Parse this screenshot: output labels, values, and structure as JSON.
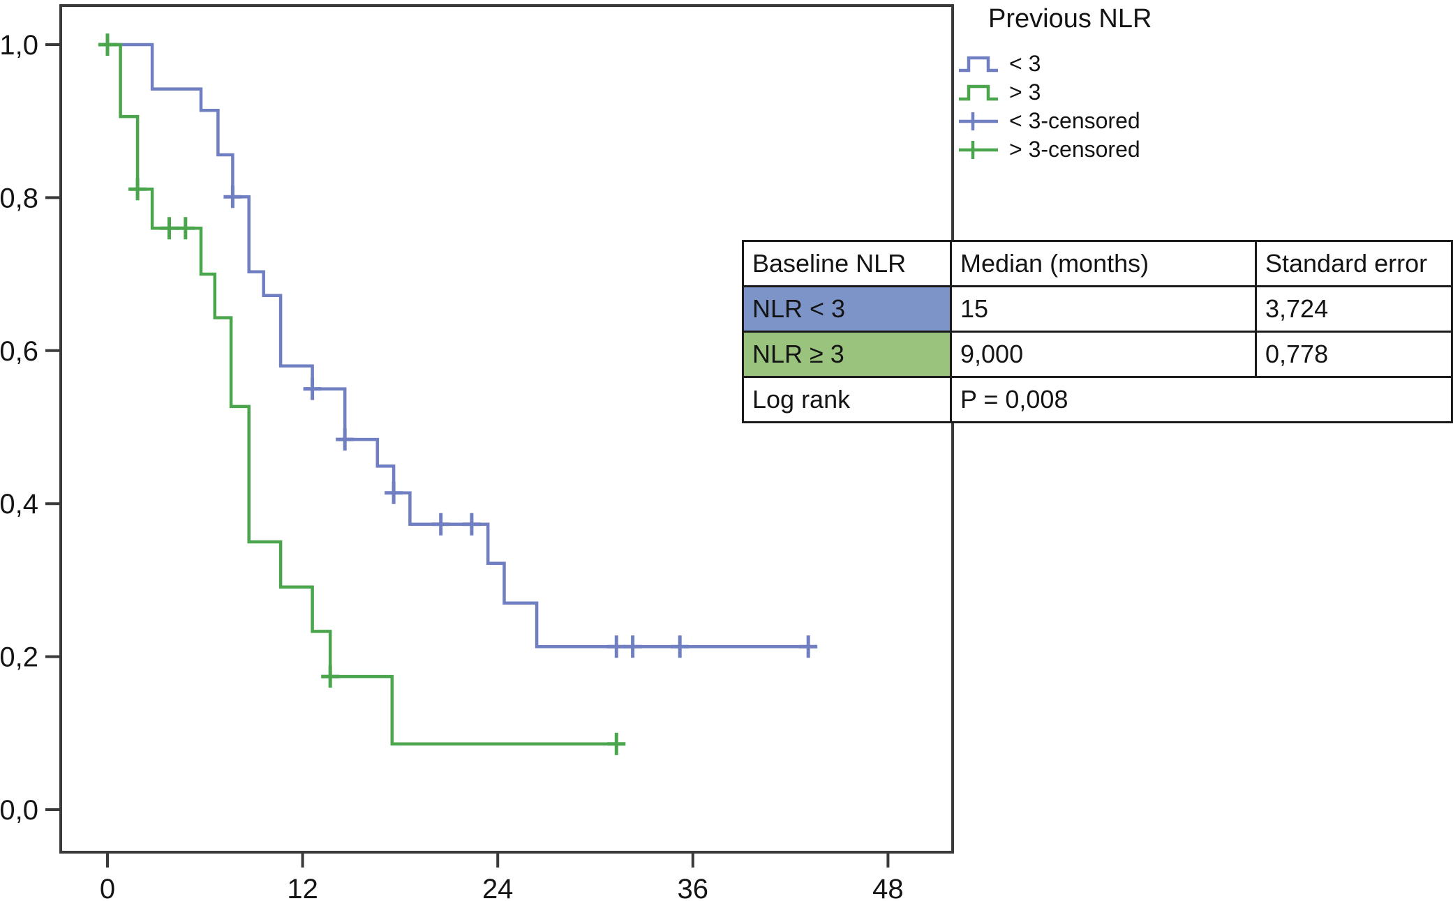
{
  "legend": {
    "title": "Previous NLR",
    "items": [
      {
        "label": "< 3",
        "type": "step",
        "color": "#6f7fc1"
      },
      {
        "label": "> 3",
        "type": "step",
        "color": "#4aa54c"
      },
      {
        "label": "< 3-censored",
        "type": "censor",
        "color": "#6f7fc1"
      },
      {
        "label": "> 3-censored",
        "type": "censor",
        "color": "#4aa54c"
      }
    ]
  },
  "stats_table": {
    "headers": [
      "Baseline NLR",
      "Median (months)",
      "Standard error"
    ],
    "rows": [
      {
        "label": "NLR < 3",
        "median": "15",
        "se": "3,724",
        "fill": "#7d94c9"
      },
      {
        "label": "NLR ≥ 3",
        "median": "9,000",
        "se": "0,778",
        "fill": "#9ac47d"
      }
    ],
    "logrank_label": "Log rank",
    "logrank_value": "P = 0,008"
  },
  "chart_data": {
    "type": "line",
    "subtype": "kaplan-meier-step",
    "title": "",
    "xlabel": "",
    "ylabel": "",
    "grid": false,
    "legend_position": "top-right",
    "xlim": [
      0,
      48
    ],
    "ylim": [
      0.0,
      1.0
    ],
    "x_tick_values": [
      0,
      12,
      24,
      36,
      48
    ],
    "x_tick_labels": [
      "0",
      "12",
      "24",
      "36",
      "48"
    ],
    "y_tick_values": [
      1.0,
      0.8,
      0.6,
      0.4,
      0.2,
      0.0
    ],
    "y_tick_labels": [
      "1,0",
      "0,8",
      "0,6",
      "0,4",
      "0,2",
      "0,0"
    ],
    "series": [
      {
        "name": "NLR < 3",
        "legend_label": "< 3",
        "color": "#6f7fc1",
        "steps": [
          [
            0,
            1.0
          ],
          [
            2.75,
            1.0
          ],
          [
            2.75,
            0.942
          ],
          [
            5.75,
            0.942
          ],
          [
            5.75,
            0.914
          ],
          [
            6.8,
            0.914
          ],
          [
            6.8,
            0.856
          ],
          [
            7.7,
            0.856
          ],
          [
            7.7,
            0.801
          ],
          [
            8.7,
            0.801
          ],
          [
            8.7,
            0.703
          ],
          [
            9.6,
            0.703
          ],
          [
            9.6,
            0.672
          ],
          [
            10.65,
            0.672
          ],
          [
            10.65,
            0.58
          ],
          [
            12.6,
            0.58
          ],
          [
            12.6,
            0.55
          ],
          [
            14.6,
            0.55
          ],
          [
            14.6,
            0.484
          ],
          [
            16.6,
            0.484
          ],
          [
            16.6,
            0.449
          ],
          [
            17.6,
            0.449
          ],
          [
            17.6,
            0.414
          ],
          [
            18.6,
            0.414
          ],
          [
            18.6,
            0.373
          ],
          [
            23.4,
            0.373
          ],
          [
            23.4,
            0.322
          ],
          [
            24.4,
            0.322
          ],
          [
            24.4,
            0.27
          ],
          [
            26.4,
            0.27
          ],
          [
            26.4,
            0.213
          ],
          [
            43.5,
            0.213
          ]
        ],
        "censored": [
          [
            7.7,
            0.801
          ],
          [
            12.6,
            0.55
          ],
          [
            14.6,
            0.484
          ],
          [
            17.6,
            0.414
          ],
          [
            20.5,
            0.373
          ],
          [
            22.4,
            0.373
          ],
          [
            31.3,
            0.213
          ],
          [
            32.3,
            0.213
          ],
          [
            35.2,
            0.213
          ],
          [
            43.1,
            0.213
          ]
        ]
      },
      {
        "name": "NLR ≥ 3",
        "legend_label": "> 3",
        "color": "#4aa54c",
        "steps": [
          [
            0,
            1.0
          ],
          [
            0.8,
            1.0
          ],
          [
            0.8,
            0.906
          ],
          [
            1.85,
            0.906
          ],
          [
            1.85,
            0.811
          ],
          [
            2.75,
            0.811
          ],
          [
            2.75,
            0.76
          ],
          [
            5.75,
            0.76
          ],
          [
            5.75,
            0.7
          ],
          [
            6.6,
            0.7
          ],
          [
            6.6,
            0.643
          ],
          [
            7.6,
            0.643
          ],
          [
            7.6,
            0.527
          ],
          [
            8.7,
            0.527
          ],
          [
            8.7,
            0.35
          ],
          [
            10.65,
            0.35
          ],
          [
            10.65,
            0.291
          ],
          [
            12.6,
            0.291
          ],
          [
            12.6,
            0.233
          ],
          [
            13.7,
            0.233
          ],
          [
            13.7,
            0.174
          ],
          [
            17.5,
            0.174
          ],
          [
            17.5,
            0.086
          ],
          [
            31.7,
            0.086
          ]
        ],
        "censored": [
          [
            0,
            1.0
          ],
          [
            1.85,
            0.811
          ],
          [
            3.8,
            0.76
          ],
          [
            4.8,
            0.76
          ],
          [
            13.7,
            0.174
          ],
          [
            31.3,
            0.086
          ]
        ]
      }
    ],
    "stats": {
      "median_months": {
        "NLR < 3": "15",
        "NLR ≥ 3": "9,000"
      },
      "standard_error": {
        "NLR < 3": "3,724",
        "NLR ≥ 3": "0,778"
      },
      "log_rank_p": "0,008"
    }
  },
  "colors": {
    "axis": "#3a3a3a",
    "text": "#141414",
    "background": "#ffffff"
  }
}
